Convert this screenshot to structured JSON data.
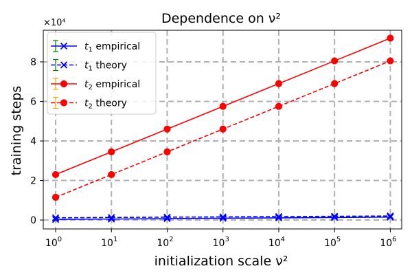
{
  "chart_data": {
    "type": "line",
    "title": "Dependence on ν²",
    "xlabel": "initialization scale ν²",
    "ylabel": "training steps",
    "x_scale": "log10",
    "xlim": [
      0.6,
      1600000.0
    ],
    "ylim": [
      -4500,
      96000
    ],
    "y_multiplier_label": "×10⁴",
    "x_ticks": [
      1,
      10,
      100,
      1000,
      10000,
      100000,
      1000000
    ],
    "x_tick_labels": [
      {
        "base": "10",
        "exp": "0"
      },
      {
        "base": "10",
        "exp": "1"
      },
      {
        "base": "10",
        "exp": "2"
      },
      {
        "base": "10",
        "exp": "3"
      },
      {
        "base": "10",
        "exp": "4"
      },
      {
        "base": "10",
        "exp": "5"
      },
      {
        "base": "10",
        "exp": "6"
      }
    ],
    "y_ticks": [
      0,
      20000,
      40000,
      60000,
      80000
    ],
    "y_tick_labels": [
      "0",
      "2",
      "4",
      "6",
      "8"
    ],
    "grid": true,
    "legend_position": "top-left",
    "colors": {
      "t1": "#0000ff",
      "t2": "#ff0000",
      "t1_err": "#008000",
      "t2_err": "#ffa500",
      "grid": "#b0b0b0"
    },
    "x": [
      1,
      10,
      100,
      1000,
      10000,
      100000,
      1000000
    ],
    "series": [
      {
        "id": "t1e",
        "name": "t₁ empirical",
        "label_main": "t",
        "label_sub": "1",
        "label_rest": " empirical",
        "dashed": false,
        "marker": "x",
        "color": "#0000ff",
        "errcolor": "#008000",
        "values": [
          300,
          500,
          700,
          900,
          1100,
          1300,
          1500
        ]
      },
      {
        "id": "t1t",
        "name": "t₁ theory",
        "label_main": "t",
        "label_sub": "1",
        "label_rest": " theory",
        "dashed": true,
        "marker": "x",
        "color": "#0000ff",
        "errcolor": "#008000",
        "values": [
          1150,
          1300,
          1450,
          1600,
          1750,
          1900,
          2050
        ]
      },
      {
        "id": "t2e",
        "name": "t₂ empirical",
        "label_main": "t",
        "label_sub": "2",
        "label_rest": " empirical",
        "dashed": false,
        "marker": "o",
        "color": "#ff0000",
        "errcolor": "#ffa500",
        "values": [
          23000,
          34500,
          46000,
          57500,
          69000,
          80500,
          92000
        ]
      },
      {
        "id": "t2t",
        "name": "t₂ theory",
        "label_main": "t",
        "label_sub": "2",
        "label_rest": " theory",
        "dashed": true,
        "marker": "o",
        "color": "#ff0000",
        "errcolor": "#ffa500",
        "values": [
          11500,
          23000,
          34500,
          46000,
          57500,
          69000,
          80500
        ]
      }
    ]
  }
}
